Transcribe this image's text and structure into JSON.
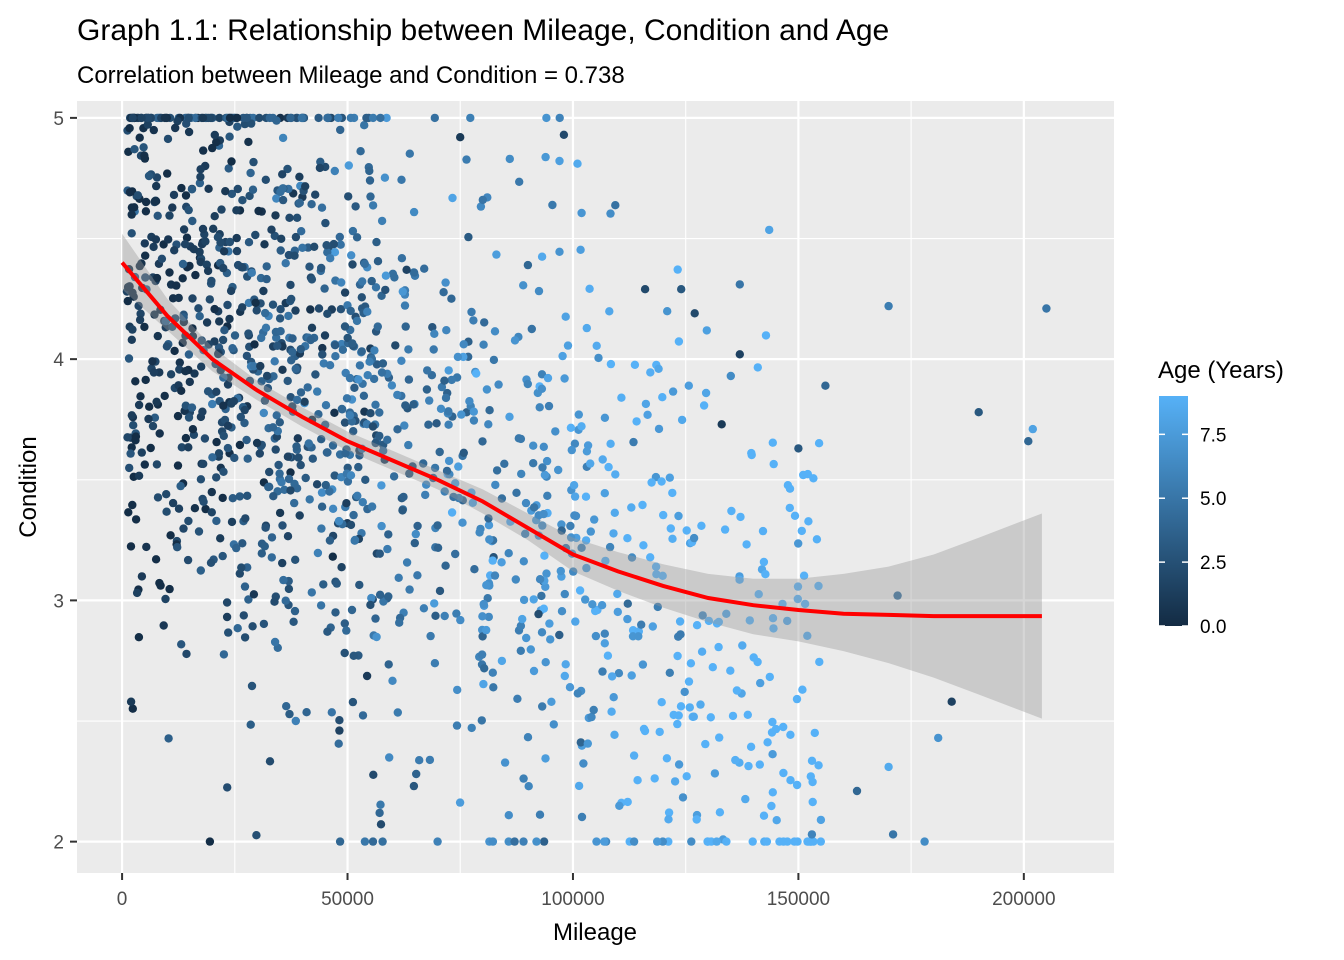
{
  "chart_data": {
    "type": "scatter",
    "title": "Graph 1.1: Relationship between Mileage, Condition and Age",
    "subtitle": "Correlation between Mileage and Condition  = 0.738",
    "xlabel": "Mileage",
    "ylabel": "Condition",
    "xlim": [
      -10000,
      220000
    ],
    "ylim": [
      1.87,
      5.07
    ],
    "x_ticks": [
      0,
      50000,
      100000,
      150000,
      200000
    ],
    "x_tick_labels": [
      "0",
      "50000",
      "100000",
      "150000",
      "200000"
    ],
    "y_ticks": [
      2,
      3,
      4,
      5
    ],
    "y_tick_labels": [
      "2",
      "3",
      "4",
      "5"
    ],
    "grid": true,
    "legend": {
      "title": "Age (Years)",
      "position": "right",
      "type": "colorbar",
      "range": [
        0,
        9
      ],
      "ticks": [
        0,
        2.5,
        5,
        7.5
      ],
      "tick_labels": [
        "0.0",
        "2.5",
        "5.0",
        "7.5"
      ],
      "low_color": "#132B43",
      "high_color": "#56B1F7"
    },
    "smooth_line": {
      "color": "#FF0000",
      "band_color": "#999999",
      "x": [
        0,
        10000,
        20000,
        30000,
        40000,
        50000,
        60000,
        70000,
        80000,
        90000,
        100000,
        110000,
        120000,
        130000,
        140000,
        150000,
        160000,
        170000,
        180000,
        190000,
        204000
      ],
      "y": [
        4.4,
        4.18,
        4.0,
        3.87,
        3.76,
        3.66,
        3.58,
        3.5,
        3.41,
        3.3,
        3.19,
        3.12,
        3.06,
        3.01,
        2.98,
        2.96,
        2.945,
        2.94,
        2.935,
        2.935,
        2.935
      ],
      "lower": [
        4.29,
        4.12,
        3.95,
        3.83,
        3.72,
        3.62,
        3.54,
        3.46,
        3.36,
        3.25,
        3.12,
        3.04,
        2.97,
        2.91,
        2.86,
        2.83,
        2.79,
        2.74,
        2.68,
        2.61,
        2.51
      ],
      "upper": [
        4.52,
        4.25,
        4.05,
        3.91,
        3.8,
        3.7,
        3.62,
        3.54,
        3.46,
        3.36,
        3.26,
        3.2,
        3.15,
        3.11,
        3.09,
        3.09,
        3.11,
        3.14,
        3.19,
        3.26,
        3.36
      ]
    },
    "sample_outliers": [
      {
        "x": 2000,
        "y": 2.58,
        "age": 1.0
      },
      {
        "x": 98000,
        "y": 4.93,
        "age": 2.0
      },
      {
        "x": 101000,
        "y": 4.81,
        "age": 8.5
      },
      {
        "x": 170000,
        "y": 4.22,
        "age": 5.5
      },
      {
        "x": 205000,
        "y": 4.21,
        "age": 5.0
      },
      {
        "x": 190000,
        "y": 3.78,
        "age": 3.0
      },
      {
        "x": 202000,
        "y": 3.71,
        "age": 8.0
      },
      {
        "x": 201000,
        "y": 3.66,
        "age": 4.0
      },
      {
        "x": 178000,
        "y": 2.0,
        "age": 6.5
      },
      {
        "x": 184000,
        "y": 2.58,
        "age": 1.5
      },
      {
        "x": 181000,
        "y": 2.43,
        "age": 7.0
      },
      {
        "x": 170000,
        "y": 2.31,
        "age": 8.5
      },
      {
        "x": 171000,
        "y": 2.03,
        "age": 5.0
      },
      {
        "x": 163000,
        "y": 2.21,
        "age": 4.0
      },
      {
        "x": 155000,
        "y": 2.09,
        "age": 8.0
      },
      {
        "x": 153000,
        "y": 2.03,
        "age": 6.0
      },
      {
        "x": 172000,
        "y": 3.02,
        "age": 4.5
      },
      {
        "x": 156000,
        "y": 3.89,
        "age": 4.0
      },
      {
        "x": 150000,
        "y": 3.63,
        "age": 3.0
      },
      {
        "x": 137000,
        "y": 4.31,
        "age": 5.0
      },
      {
        "x": 137000,
        "y": 4.02,
        "age": 1.5
      },
      {
        "x": 127000,
        "y": 4.19,
        "age": 2.0
      },
      {
        "x": 133000,
        "y": 3.73,
        "age": 1.0
      },
      {
        "x": 135000,
        "y": 3.93,
        "age": 6.5
      },
      {
        "x": 124000,
        "y": 4.29,
        "age": 3.0
      },
      {
        "x": 116000,
        "y": 4.29,
        "age": 2.0
      },
      {
        "x": 90000,
        "y": 4.39,
        "age": 4.0
      },
      {
        "x": 80000,
        "y": 4.66,
        "age": 5.0
      },
      {
        "x": 86000,
        "y": 4.83,
        "age": 6.5
      },
      {
        "x": 75000,
        "y": 4.92,
        "age": 1.0
      }
    ]
  }
}
